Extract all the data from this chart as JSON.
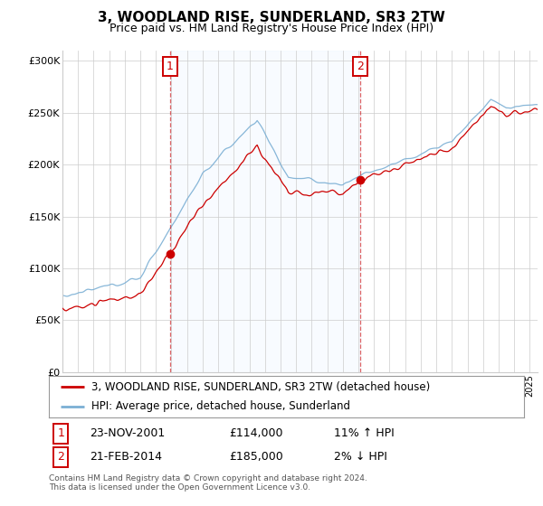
{
  "title": "3, WOODLAND RISE, SUNDERLAND, SR3 2TW",
  "subtitle": "Price paid vs. HM Land Registry's House Price Index (HPI)",
  "legend_line1": "3, WOODLAND RISE, SUNDERLAND, SR3 2TW (detached house)",
  "legend_line2": "HPI: Average price, detached house, Sunderland",
  "sale1_date": "23-NOV-2001",
  "sale1_price": 114000,
  "sale1_label": "11% ↑ HPI",
  "sale2_date": "21-FEB-2014",
  "sale2_price": 185000,
  "sale2_label": "2% ↓ HPI",
  "footnote1": "Contains HM Land Registry data © Crown copyright and database right 2024.",
  "footnote2": "This data is licensed under the Open Government Licence v3.0.",
  "ylim": [
    0,
    310000
  ],
  "yticks": [
    0,
    50000,
    100000,
    150000,
    200000,
    250000,
    300000
  ],
  "sale1_year": 2001.9,
  "sale2_year": 2014.13,
  "hpi_color": "#7bafd4",
  "price_color": "#cc0000",
  "shade_color": "#ddeeff",
  "background_color": "#ffffff",
  "grid_color": "#cccccc"
}
